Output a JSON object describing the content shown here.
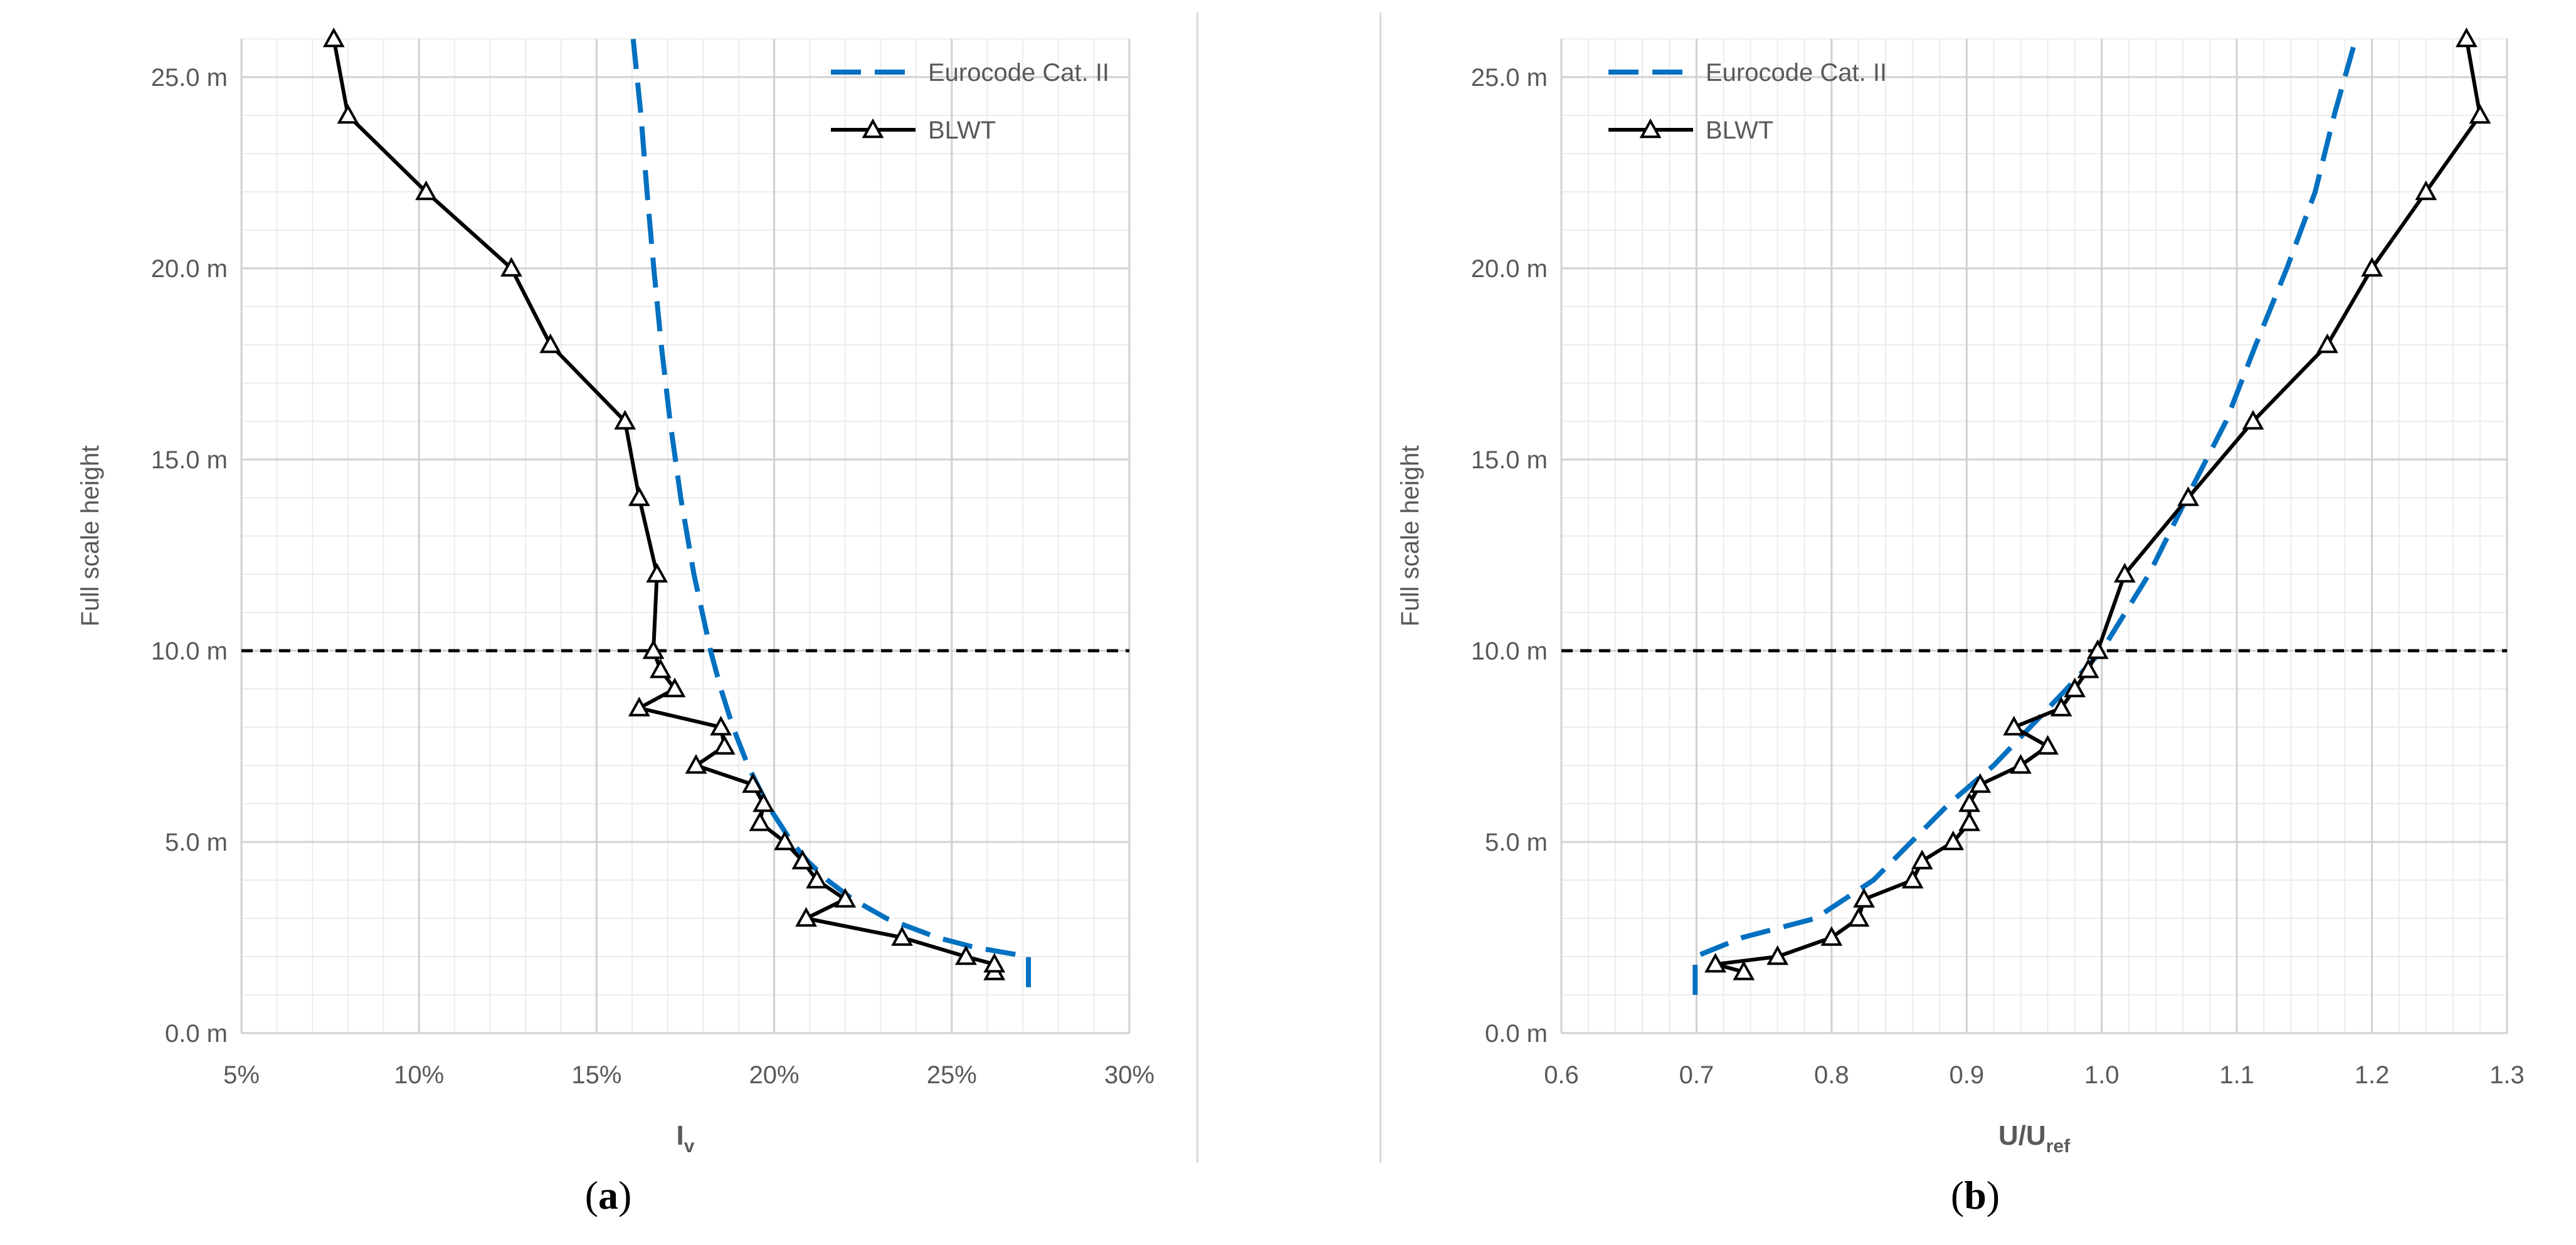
{
  "figure": {
    "captions": [
      {
        "open": "(",
        "letter": "a",
        "close": ")"
      },
      {
        "open": "(",
        "letter": "b",
        "close": ")"
      }
    ]
  },
  "chart_data": [
    {
      "type": "line",
      "xlabel": "I",
      "xlabel_sub": "v",
      "ylabel": "Full scale height",
      "xlim": [
        0.05,
        0.3
      ],
      "ylim": [
        0,
        26
      ],
      "xticks": [
        0.05,
        0.1,
        0.15,
        0.2,
        0.25,
        0.3
      ],
      "xtick_labels": [
        "5%",
        "10%",
        "15%",
        "20%",
        "25%",
        "30%"
      ],
      "yticks": [
        0,
        5,
        10,
        15,
        20,
        25
      ],
      "ytick_labels": [
        "0.0 m",
        "5.0 m",
        "10.0 m",
        "15.0 m",
        "20.0 m",
        "25.0 m"
      ],
      "x_minor_step": 0.01,
      "y_minor_step": 1,
      "grid": true,
      "legend_position": "top-right",
      "reference_line": {
        "y": 10,
        "style": "dashed",
        "color": "#000000"
      },
      "series": [
        {
          "name": "Eurocode Cat. II",
          "style": "dashed",
          "color": "#0070c0",
          "points": [
            [
              0.2716,
              1.2
            ],
            [
              0.2716,
              2.0
            ],
            [
              0.2561,
              2.25
            ],
            [
              0.2459,
              2.5
            ],
            [
              0.2316,
              3.0
            ],
            [
              0.2221,
              3.5
            ],
            [
              0.215,
              4.0
            ],
            [
              0.2094,
              4.5
            ],
            [
              0.2049,
              5.0
            ],
            [
              0.1979,
              6.0
            ],
            [
              0.1926,
              7.0
            ],
            [
              0.1884,
              8.0
            ],
            [
              0.185,
              9.0
            ],
            [
              0.1821,
              10.0
            ],
            [
              0.1774,
              12.0
            ],
            [
              0.1737,
              14.0
            ],
            [
              0.1707,
              16.0
            ],
            [
              0.1682,
              18.0
            ],
            [
              0.1661,
              20.0
            ],
            [
              0.1642,
              22.0
            ],
            [
              0.1625,
              24.0
            ],
            [
              0.1603,
              26.0
            ]
          ]
        },
        {
          "name": "BLWT",
          "style": "solid",
          "color": "#000000",
          "marker": "triangle",
          "points": [
            [
              0.262,
              1.6
            ],
            [
              0.262,
              1.8
            ],
            [
              0.254,
              2.0
            ],
            [
              0.236,
              2.5
            ],
            [
              0.209,
              3.0
            ],
            [
              0.22,
              3.5
            ],
            [
              0.212,
              4.0
            ],
            [
              0.208,
              4.5
            ],
            [
              0.203,
              5.0
            ],
            [
              0.196,
              5.5
            ],
            [
              0.197,
              6.0
            ],
            [
              0.194,
              6.5
            ],
            [
              0.178,
              7.0
            ],
            [
              0.186,
              7.5
            ],
            [
              0.185,
              8.0
            ],
            [
              0.162,
              8.5
            ],
            [
              0.172,
              9.0
            ],
            [
              0.168,
              9.5
            ],
            [
              0.166,
              10.0
            ],
            [
              0.167,
              12.0
            ],
            [
              0.162,
              14.0
            ],
            [
              0.158,
              16.0
            ],
            [
              0.137,
              18.0
            ],
            [
              0.126,
              20.0
            ],
            [
              0.102,
              22.0
            ],
            [
              0.08,
              24.0
            ],
            [
              0.076,
              26.0
            ]
          ]
        }
      ]
    },
    {
      "type": "line",
      "xlabel": "U/U",
      "xlabel_sub": "ref",
      "ylabel": "Full scale height",
      "xlim": [
        0.6,
        1.3
      ],
      "ylim": [
        0,
        26
      ],
      "xticks": [
        0.6,
        0.7,
        0.8,
        0.9,
        1.0,
        1.1,
        1.2,
        1.3
      ],
      "xtick_labels": [
        "0.6",
        "0.7",
        "0.8",
        "0.9",
        "1.0",
        "1.1",
        "1.2",
        "1.3"
      ],
      "yticks": [
        0,
        5,
        10,
        15,
        20,
        25
      ],
      "ytick_labels": [
        "0.0 m",
        "5.0 m",
        "10.0 m",
        "15.0 m",
        "20.0 m",
        "25.0 m"
      ],
      "x_minor_step": 0.02,
      "y_minor_step": 1,
      "grid": true,
      "legend_position": "top-left",
      "reference_line": {
        "y": 10,
        "style": "dashed",
        "color": "#000000"
      },
      "series": [
        {
          "name": "Eurocode Cat. II",
          "style": "dashed",
          "color": "#0070c0",
          "points": [
            [
              0.699,
              1.0
            ],
            [
              0.699,
              2.0
            ],
            [
              0.734,
              2.5
            ],
            [
              0.788,
              3.0
            ],
            [
              0.831,
              4.0
            ],
            [
              0.859,
              5.0
            ],
            [
              0.887,
              6.0
            ],
            [
              0.92,
              7.0
            ],
            [
              0.947,
              8.0
            ],
            [
              0.974,
              9.0
            ],
            [
              1.0,
              10.0
            ],
            [
              1.035,
              12.0
            ],
            [
              1.063,
              14.0
            ],
            [
              1.092,
              16.0
            ],
            [
              1.114,
              18.0
            ],
            [
              1.137,
              20.0
            ],
            [
              1.158,
              22.0
            ],
            [
              1.172,
              24.0
            ],
            [
              1.188,
              26.0
            ]
          ]
        },
        {
          "name": "BLWT",
          "style": "solid",
          "color": "#000000",
          "marker": "triangle",
          "points": [
            [
              0.735,
              1.6
            ],
            [
              0.714,
              1.8
            ],
            [
              0.76,
              2.0
            ],
            [
              0.8,
              2.5
            ],
            [
              0.82,
              3.0
            ],
            [
              0.824,
              3.5
            ],
            [
              0.86,
              4.0
            ],
            [
              0.867,
              4.5
            ],
            [
              0.89,
              5.0
            ],
            [
              0.902,
              5.5
            ],
            [
              0.902,
              6.0
            ],
            [
              0.91,
              6.5
            ],
            [
              0.94,
              7.0
            ],
            [
              0.96,
              7.5
            ],
            [
              0.935,
              8.0
            ],
            [
              0.97,
              8.5
            ],
            [
              0.98,
              9.0
            ],
            [
              0.99,
              9.5
            ],
            [
              0.997,
              10.0
            ],
            [
              1.017,
              12.0
            ],
            [
              1.064,
              14.0
            ],
            [
              1.112,
              16.0
            ],
            [
              1.167,
              18.0
            ],
            [
              1.2,
              20.0
            ],
            [
              1.24,
              22.0
            ],
            [
              1.28,
              24.0
            ],
            [
              1.27,
              26.0
            ]
          ]
        }
      ]
    }
  ]
}
